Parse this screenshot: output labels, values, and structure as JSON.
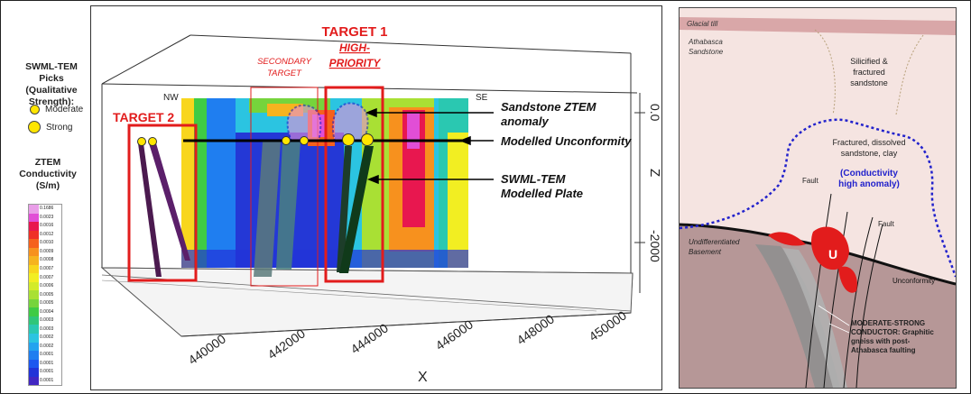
{
  "legend": {
    "picks_title": [
      "SWML-TEM Picks",
      "(Qualitative",
      "Strength):"
    ],
    "moderate_label": "Moderate",
    "strong_label": "Strong",
    "ztem_title": [
      "ZTEM",
      "Conductivity",
      "(S/m)"
    ],
    "scale_values": [
      "0.1686",
      "0.0023",
      "0.0016",
      "0.0012",
      "0.0010",
      "0.0009",
      "0.0008",
      "0.0007",
      "0.0007",
      "0.0006",
      "0.0005",
      "0.0005",
      "0.0004",
      "0.0003",
      "0.0003",
      "0.0002",
      "0.0002",
      "0.0001",
      "0.0001",
      "0.0001",
      "0.0001"
    ],
    "scale_colors": [
      "#e99ee8",
      "#e14ed6",
      "#e8174f",
      "#ef3026",
      "#f5611c",
      "#f7911e",
      "#f6b31f",
      "#f8d61d",
      "#f2ee22",
      "#d3eb29",
      "#a9e034",
      "#76d43c",
      "#3fcb45",
      "#2fc679",
      "#2ac8b1",
      "#2bc4e1",
      "#23a3ef",
      "#1f7ef0",
      "#1d57ef",
      "#2233d8",
      "#4227c2"
    ],
    "moderate_color": "#ffe600"
  },
  "section": {
    "target1": [
      "TARGET 1"
    ],
    "target1_sub": [
      "HIGH-",
      "PRIORITY"
    ],
    "target2": "TARGET 2",
    "secondary": [
      "SECONDARY",
      "TARGET"
    ],
    "nw": "NW",
    "se": "SE",
    "ann_ztem": [
      "Sandstone ZTEM",
      "anomaly"
    ],
    "ann_unconf": "Modelled Unconformity",
    "ann_plate": [
      "SWML-TEM",
      "Modelled Plate"
    ],
    "z_label": "Z",
    "z_ticks": [
      "0.0",
      "-2000"
    ],
    "x_label": "X",
    "x_ticks": [
      "440000",
      "442000",
      "444000",
      "446000",
      "448000",
      "450000"
    ],
    "target_color": "#e21c1c"
  },
  "geo": {
    "glacial_till": "Glacial till",
    "athabasca": [
      "Athabasca",
      "Sandstone"
    ],
    "silicified": [
      "Silicified &",
      "fractured",
      "sandstone"
    ],
    "fractured": [
      "Fractured, dissolved",
      "sandstone, clay"
    ],
    "conductivity": [
      "(Conductivity",
      "high anomaly)"
    ],
    "fault_1": "Fault",
    "fault_2": "Fault",
    "basement": [
      "Undifferentiated",
      "Basement"
    ],
    "u": "U",
    "unconformity": "Unconformity",
    "conductor": [
      "MODERATE-STRONG",
      "CONDUCTOR: Graphitic",
      "gneiss with post-",
      "Athabasca faulting"
    ],
    "anomaly_color": "#2222cc"
  }
}
